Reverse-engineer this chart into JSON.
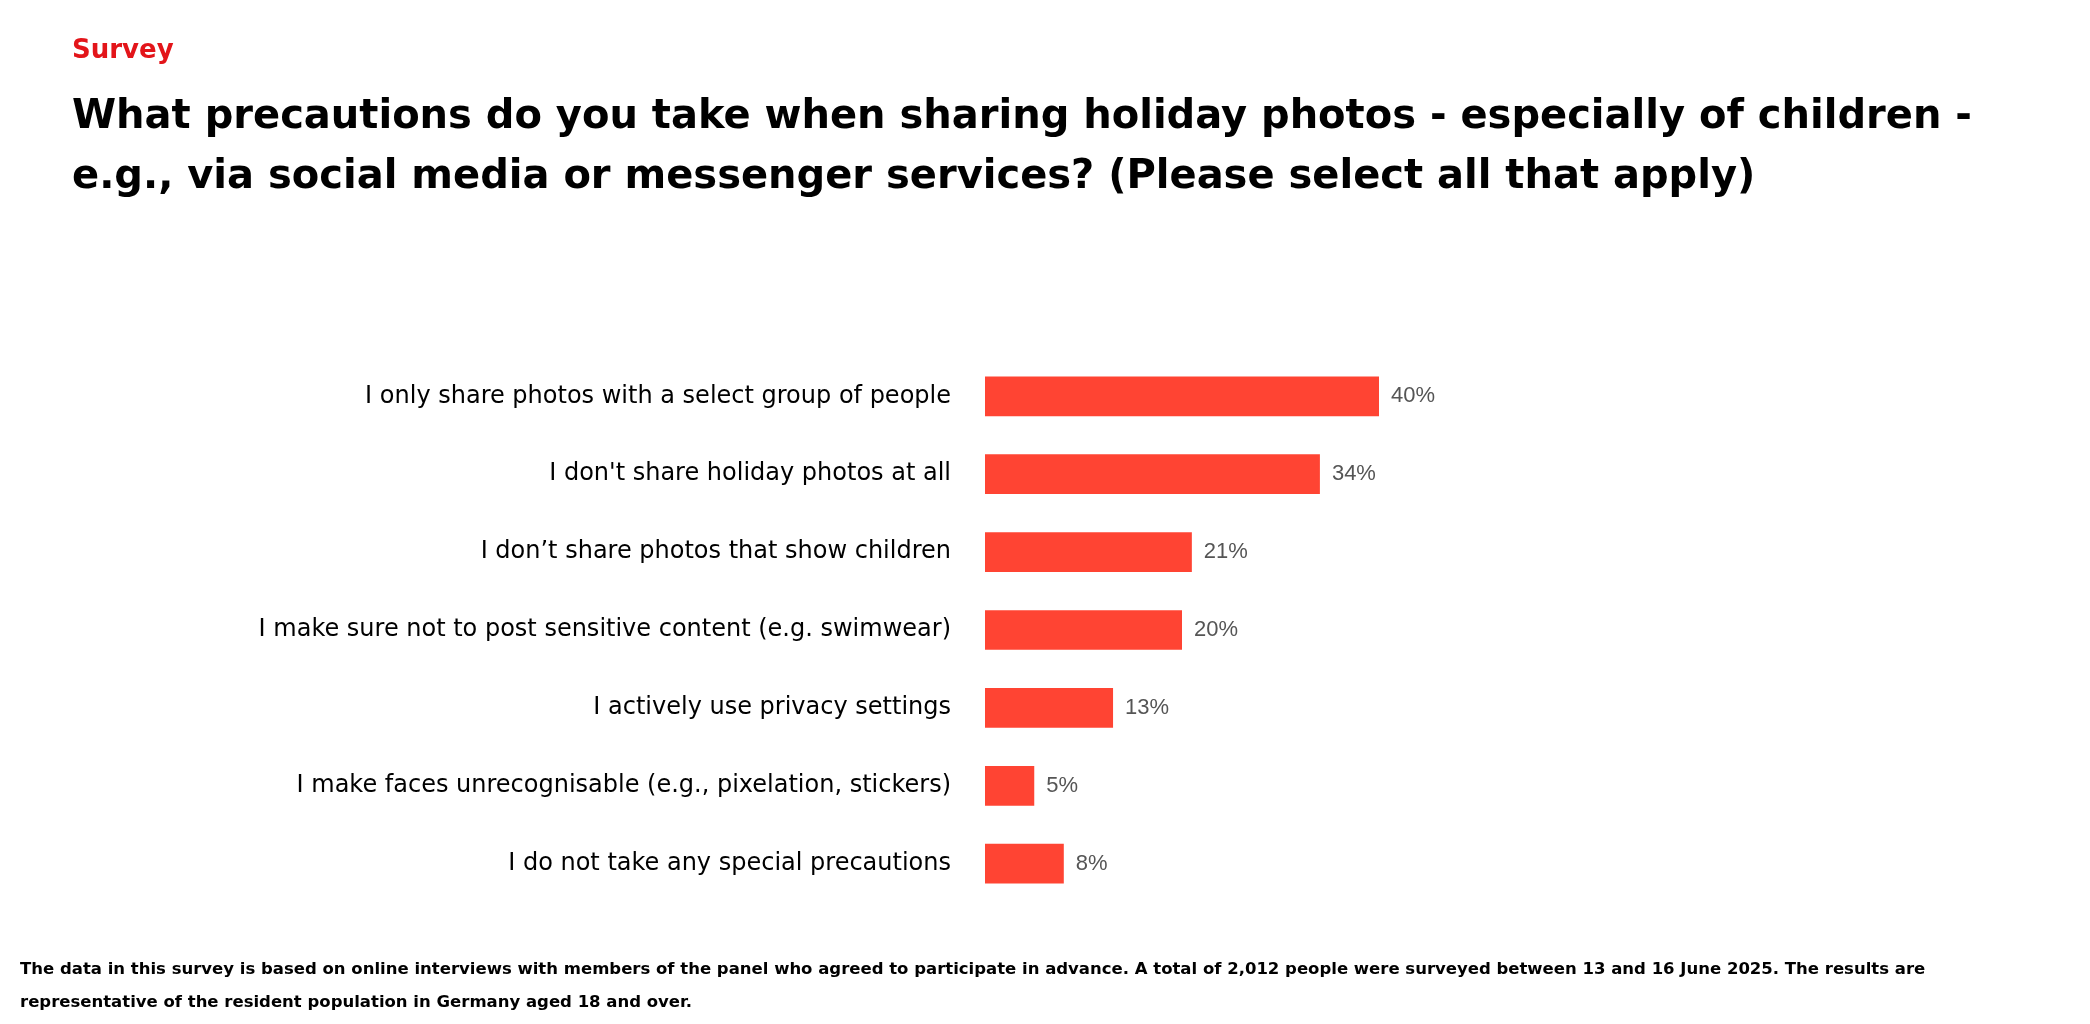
{
  "chart_data": {
    "type": "bar",
    "orientation": "horizontal",
    "subtitle": "Survey",
    "title": "What precautions do you take when sharing holiday photos - especially of children - e.g., via social media or messenger services? (Please select all that apply)",
    "categories": [
      "I only share photos with a select group of people",
      "I don't share holiday photos at all",
      "I don’t share photos that show children",
      "I make sure not to post sensitive content (e.g. swimwear)",
      "I actively use privacy settings",
      "I make faces unrecognisable (e.g., pixelation, stickers)",
      "I do not take any special precautions"
    ],
    "values": [
      40,
      34,
      21,
      20,
      13,
      5,
      8
    ],
    "value_labels": [
      "40%",
      "34%",
      "21%",
      "20%",
      "13%",
      "5%",
      "8%"
    ],
    "color": "#ff4433",
    "legend": false,
    "annotations": [
      "The data in this survey is based on online interviews with members of the panel who agreed to participate in advance. A total of 2,012 people were surveyed between 13 and 16 June 2025. The results are representative of the resident population in Germany aged 18 and over."
    ]
  }
}
